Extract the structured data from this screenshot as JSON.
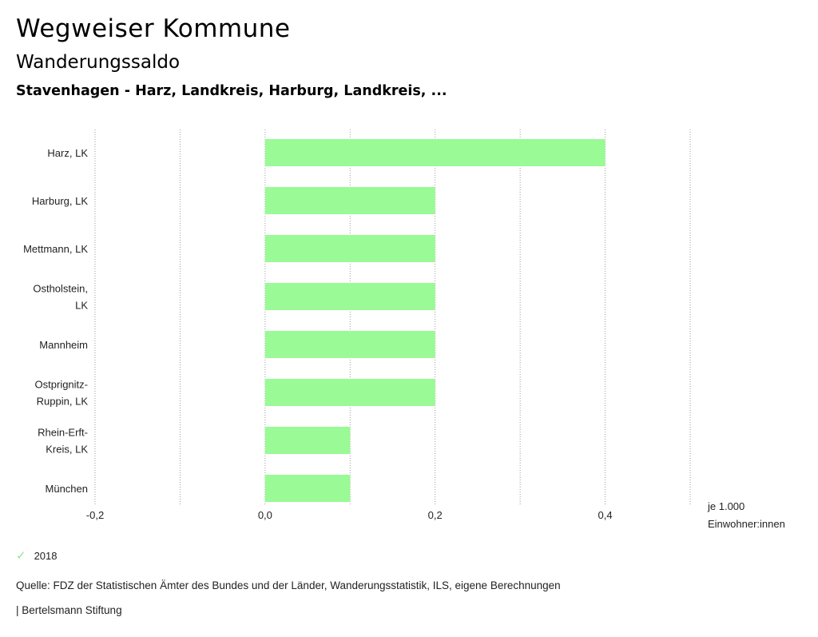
{
  "header": {
    "title": "Wegweiser Kommune",
    "subtitle": "Wanderungssaldo",
    "selection": "Stavenhagen - Harz, Landkreis, Harburg, Landkreis, ..."
  },
  "chart_data": {
    "type": "bar",
    "orientation": "horizontal",
    "categories": [
      [
        "Harz, LK"
      ],
      [
        "Harburg, LK"
      ],
      [
        "Mettmann, LK"
      ],
      [
        "Ostholstein,",
        "LK"
      ],
      [
        "Mannheim"
      ],
      [
        "Ostprignitz-",
        "Ruppin, LK"
      ],
      [
        "Rhein-Erft-",
        "Kreis, LK"
      ],
      [
        "München"
      ]
    ],
    "series": [
      {
        "name": "2018",
        "values": [
          0.4,
          0.2,
          0.2,
          0.2,
          0.2,
          0.2,
          0.1,
          0.1
        ],
        "color": "#9afa96"
      }
    ],
    "xlim": [
      -0.2,
      0.5
    ],
    "ticks": [
      -0.2,
      0.0,
      0.2,
      0.4
    ],
    "tick_labels": [
      "-0,2",
      "0,0",
      "0,2",
      "0,4"
    ],
    "gridlines": [
      -0.2,
      -0.1,
      0.0,
      0.1,
      0.2,
      0.3,
      0.4,
      0.5
    ],
    "unit_label": [
      "je 1.000",
      "Einwohner:innen"
    ],
    "grid": true
  },
  "legend": {
    "label": "2018",
    "icon": "check-icon",
    "color": "#8ee88e"
  },
  "footer": {
    "source": "Quelle: FDZ der Statistischen Ämter des Bundes und der Länder, Wanderungsstatistik, ILS, eigene Berechnungen",
    "brand": "| Bertelsmann Stiftung"
  }
}
